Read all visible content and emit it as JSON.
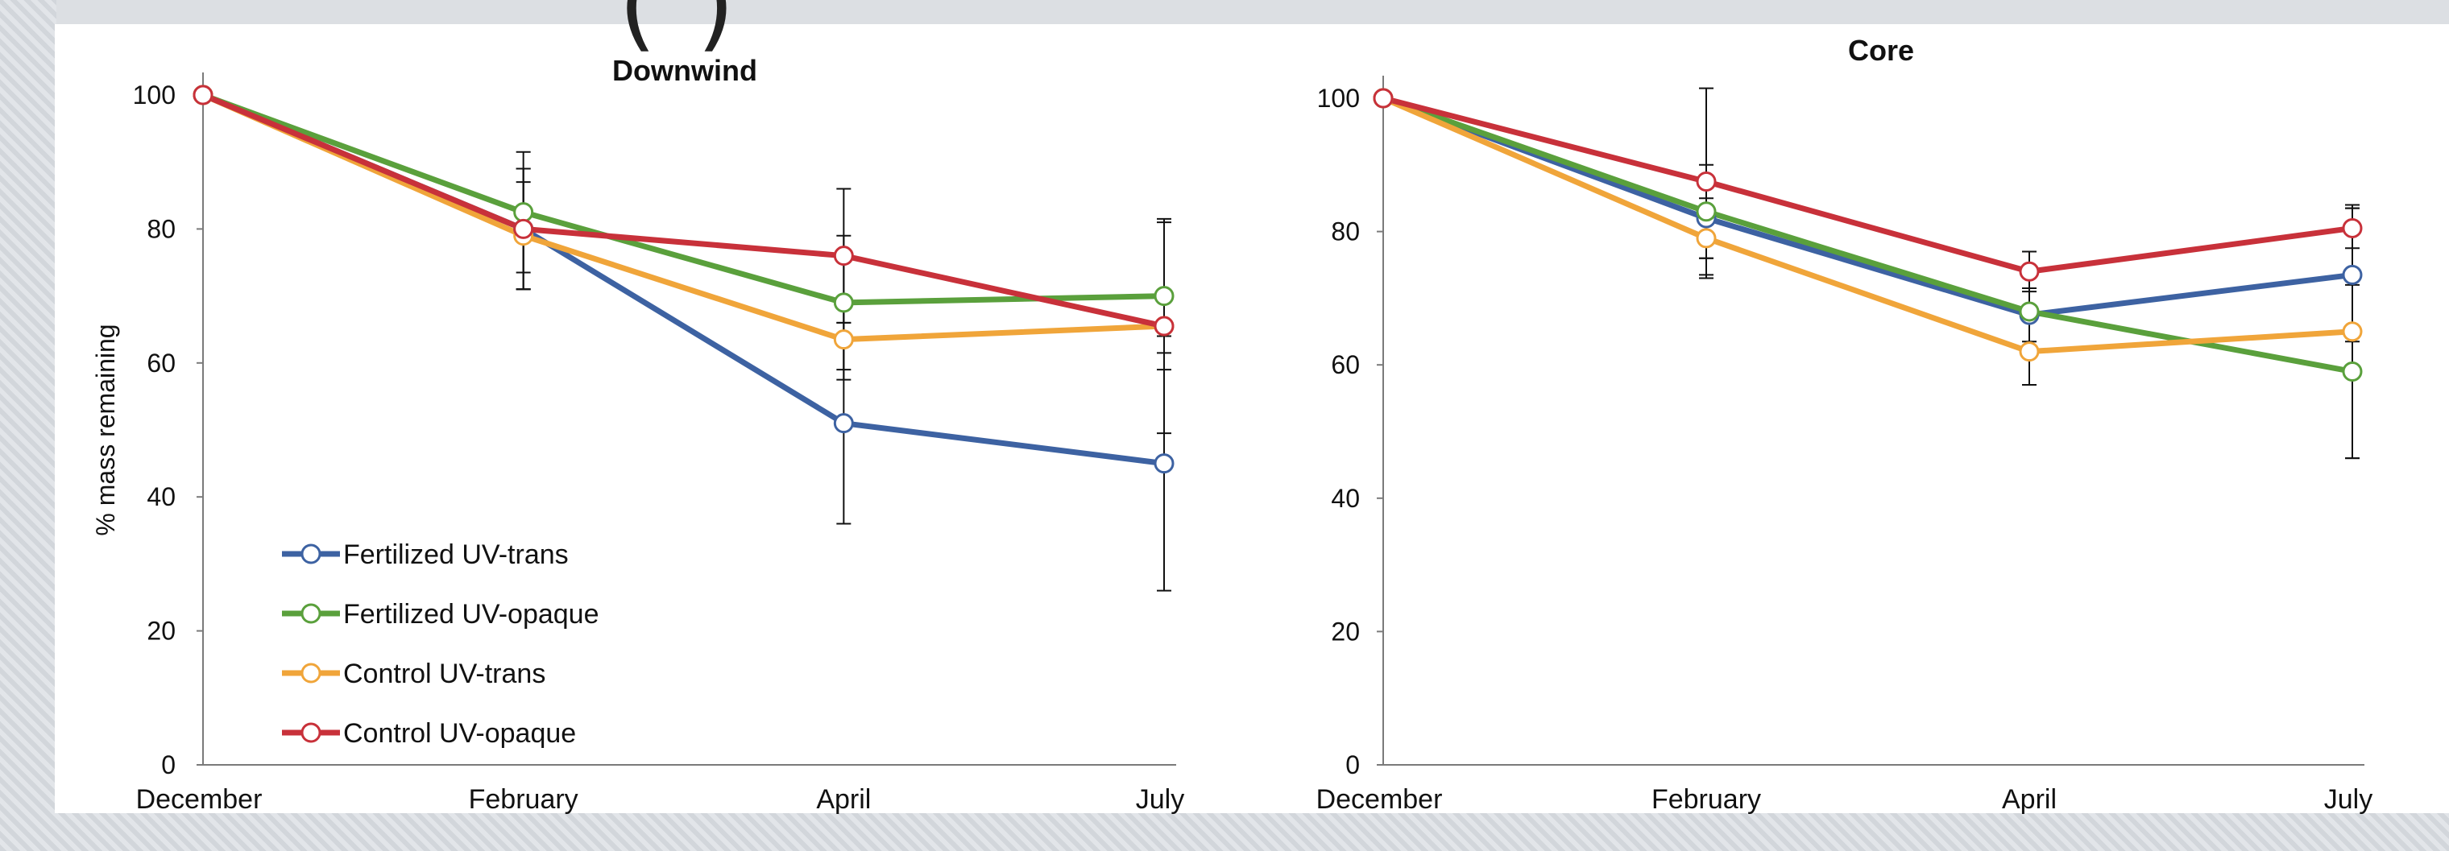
{
  "slide": {
    "title_fragment": "(                                         )"
  },
  "colors": {
    "fertilized_uv_trans": "#3d62a2",
    "fertilized_uv_opaque": "#5aa03c",
    "control_uv_trans": "#f0a53a",
    "control_uv_opaque": "#c8313a"
  },
  "chart_data": [
    {
      "type": "line",
      "title": "Downwind",
      "ylabel": "% mass remaining",
      "xlabel": "",
      "categories": [
        "December",
        "February",
        "April",
        "July"
      ],
      "ylim": [
        0,
        100
      ],
      "yticks": [
        0,
        20,
        40,
        60,
        80,
        100
      ],
      "grid": false,
      "legend_position": "bottom-left",
      "series": [
        {
          "name": "Fertilized UV-trans",
          "values": [
            100,
            80,
            51,
            45
          ],
          "error": [
            0,
            9,
            15,
            19
          ]
        },
        {
          "name": "Fertilized UV-opaque",
          "values": [
            100,
            82.5,
            69,
            70
          ],
          "error": [
            0,
            9,
            10,
            11
          ]
        },
        {
          "name": "Control UV-trans",
          "values": [
            100,
            79,
            63.5,
            65.5
          ],
          "error": [
            0,
            8,
            6,
            4
          ]
        },
        {
          "name": "Control UV-opaque",
          "values": [
            100,
            80,
            76,
            65.5
          ],
          "error": [
            0,
            9,
            10,
            16
          ]
        }
      ]
    },
    {
      "type": "line",
      "title": "Core",
      "ylabel": "",
      "xlabel": "",
      "categories": [
        "December",
        "February",
        "April",
        "July"
      ],
      "ylim": [
        0,
        100
      ],
      "yticks": [
        0,
        20,
        40,
        60,
        80,
        100
      ],
      "grid": false,
      "series": [
        {
          "name": "Fertilized UV-trans",
          "values": [
            100,
            82,
            67.5,
            73.5
          ],
          "error": [
            0,
            6,
            4,
            10
          ]
        },
        {
          "name": "Fertilized UV-opaque",
          "values": [
            100,
            83,
            68,
            59
          ],
          "error": [
            0,
            7,
            6,
            13
          ]
        },
        {
          "name": "Control UV-trans",
          "values": [
            100,
            79,
            62,
            65
          ],
          "error": [
            0,
            6,
            5,
            19
          ]
        },
        {
          "name": "Control UV-opaque",
          "values": [
            100,
            87.5,
            74,
            80.5
          ],
          "error": [
            0,
            14,
            3,
            3
          ]
        }
      ]
    }
  ]
}
